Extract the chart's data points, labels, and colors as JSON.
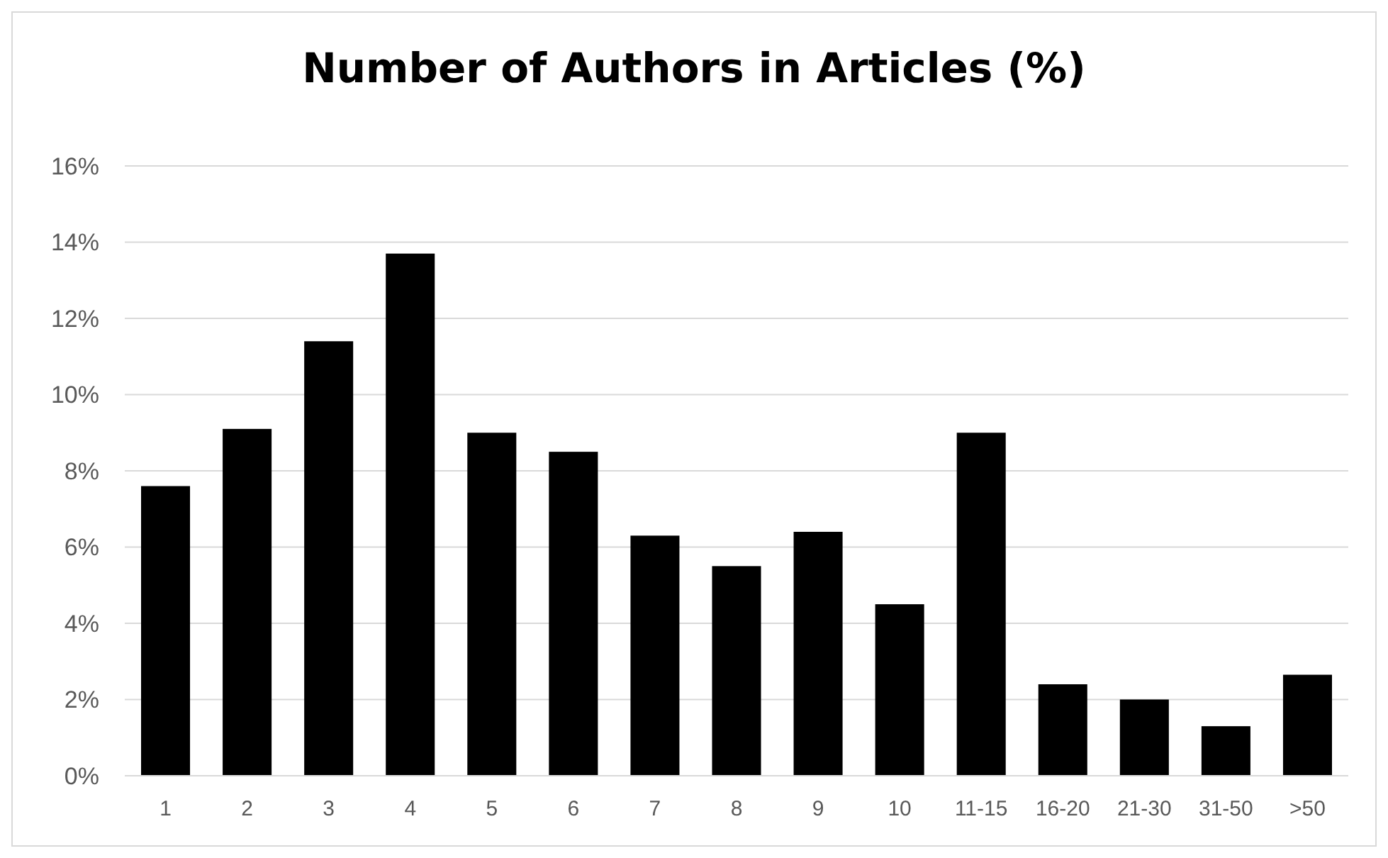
{
  "chart_data": {
    "type": "bar",
    "title": "Number of Authors in Articles (%)",
    "categories": [
      "1",
      "2",
      "3",
      "4",
      "5",
      "6",
      "7",
      "8",
      "9",
      "10",
      "11-15",
      "16-20",
      "21-30",
      "31-50",
      ">50"
    ],
    "values": [
      7.6,
      9.1,
      11.4,
      13.7,
      9.0,
      8.5,
      6.3,
      5.5,
      6.4,
      4.5,
      9.0,
      2.4,
      2.0,
      1.3,
      2.65
    ],
    "color": "#000000",
    "ylim": [
      0,
      16
    ],
    "yticks": [
      {
        "value": 0,
        "label": "0%"
      },
      {
        "value": 2,
        "label": "2%"
      },
      {
        "value": 4,
        "label": "4%"
      },
      {
        "value": 6,
        "label": "6%"
      },
      {
        "value": 8,
        "label": "8%"
      },
      {
        "value": 10,
        "label": "10%"
      },
      {
        "value": 12,
        "label": "12%"
      },
      {
        "value": 14,
        "label": "14%"
      },
      {
        "value": 16,
        "label": "16%"
      }
    ],
    "grid": "y"
  }
}
